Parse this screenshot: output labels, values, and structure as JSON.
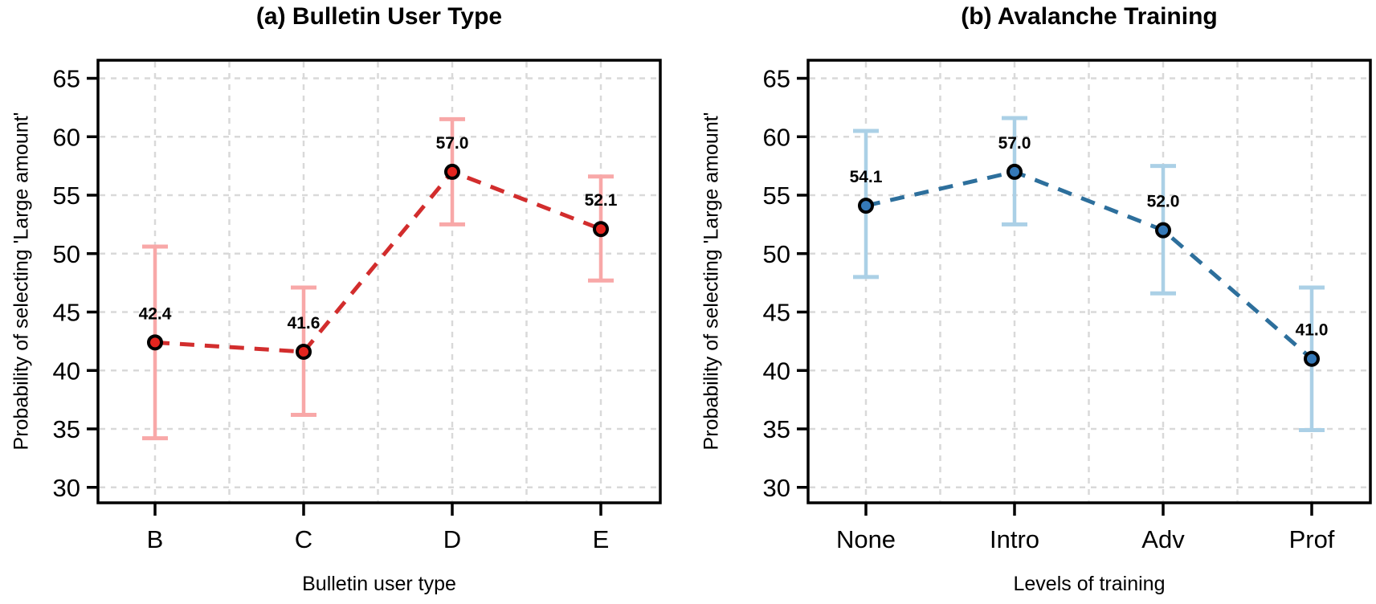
{
  "page": {
    "background": "#ffffff",
    "text_color": "#000000",
    "grid_color": "#d9d9d9"
  },
  "y_axis": {
    "label": "Probability of selecting 'Large amount'",
    "ticks": [
      30,
      35,
      40,
      45,
      50,
      55,
      60,
      65
    ],
    "ylim": [
      28.6,
      66.5
    ]
  },
  "chart_data": [
    {
      "type": "line",
      "panel": "a",
      "title": "(a) Bulletin User Type",
      "xlabel": "Bulletin user type",
      "ylabel": "Probability of selecting 'Large amount'",
      "categories": [
        "B",
        "C",
        "D",
        "E"
      ],
      "values": [
        42.4,
        41.6,
        57.0,
        52.1
      ],
      "value_labels": [
        "42.4",
        "41.6",
        "57.0",
        "52.1"
      ],
      "ci_lower": [
        34.2,
        36.2,
        52.5,
        47.7
      ],
      "ci_upper": [
        50.6,
        47.1,
        61.5,
        56.6
      ],
      "yticks": [
        30,
        35,
        40,
        45,
        50,
        55,
        60,
        65
      ],
      "ylim": [
        28.6,
        66.5
      ],
      "line_style": "dashed",
      "grid": "dashed major horizontal + vertical at categories and midpoints",
      "legend": "none",
      "colors": {
        "point_fill": "#e4251f",
        "point_outline": "#000000",
        "line": "#d22d2d",
        "error_bar": "#f8a8a8"
      }
    },
    {
      "type": "line",
      "panel": "b",
      "title": "(b) Avalanche Training",
      "xlabel": "Levels of training",
      "ylabel": "Probability of selecting 'Large amount'",
      "categories": [
        "None",
        "Intro",
        "Adv",
        "Prof"
      ],
      "values": [
        54.1,
        57.0,
        52.0,
        41.0
      ],
      "value_labels": [
        "54.1",
        "57.0",
        "52.0",
        "41.0"
      ],
      "ci_lower": [
        48.0,
        52.5,
        46.6,
        34.9
      ],
      "ci_upper": [
        60.5,
        61.6,
        57.5,
        47.1
      ],
      "yticks": [
        30,
        35,
        40,
        45,
        50,
        55,
        60,
        65
      ],
      "ylim": [
        28.6,
        66.5
      ],
      "line_style": "dashed",
      "grid": "dashed major horizontal + vertical at categories and midpoints",
      "legend": "none",
      "colors": {
        "point_fill": "#3579b8",
        "point_outline": "#000000",
        "line": "#2d6f9c",
        "error_bar": "#abd0e6"
      }
    }
  ]
}
